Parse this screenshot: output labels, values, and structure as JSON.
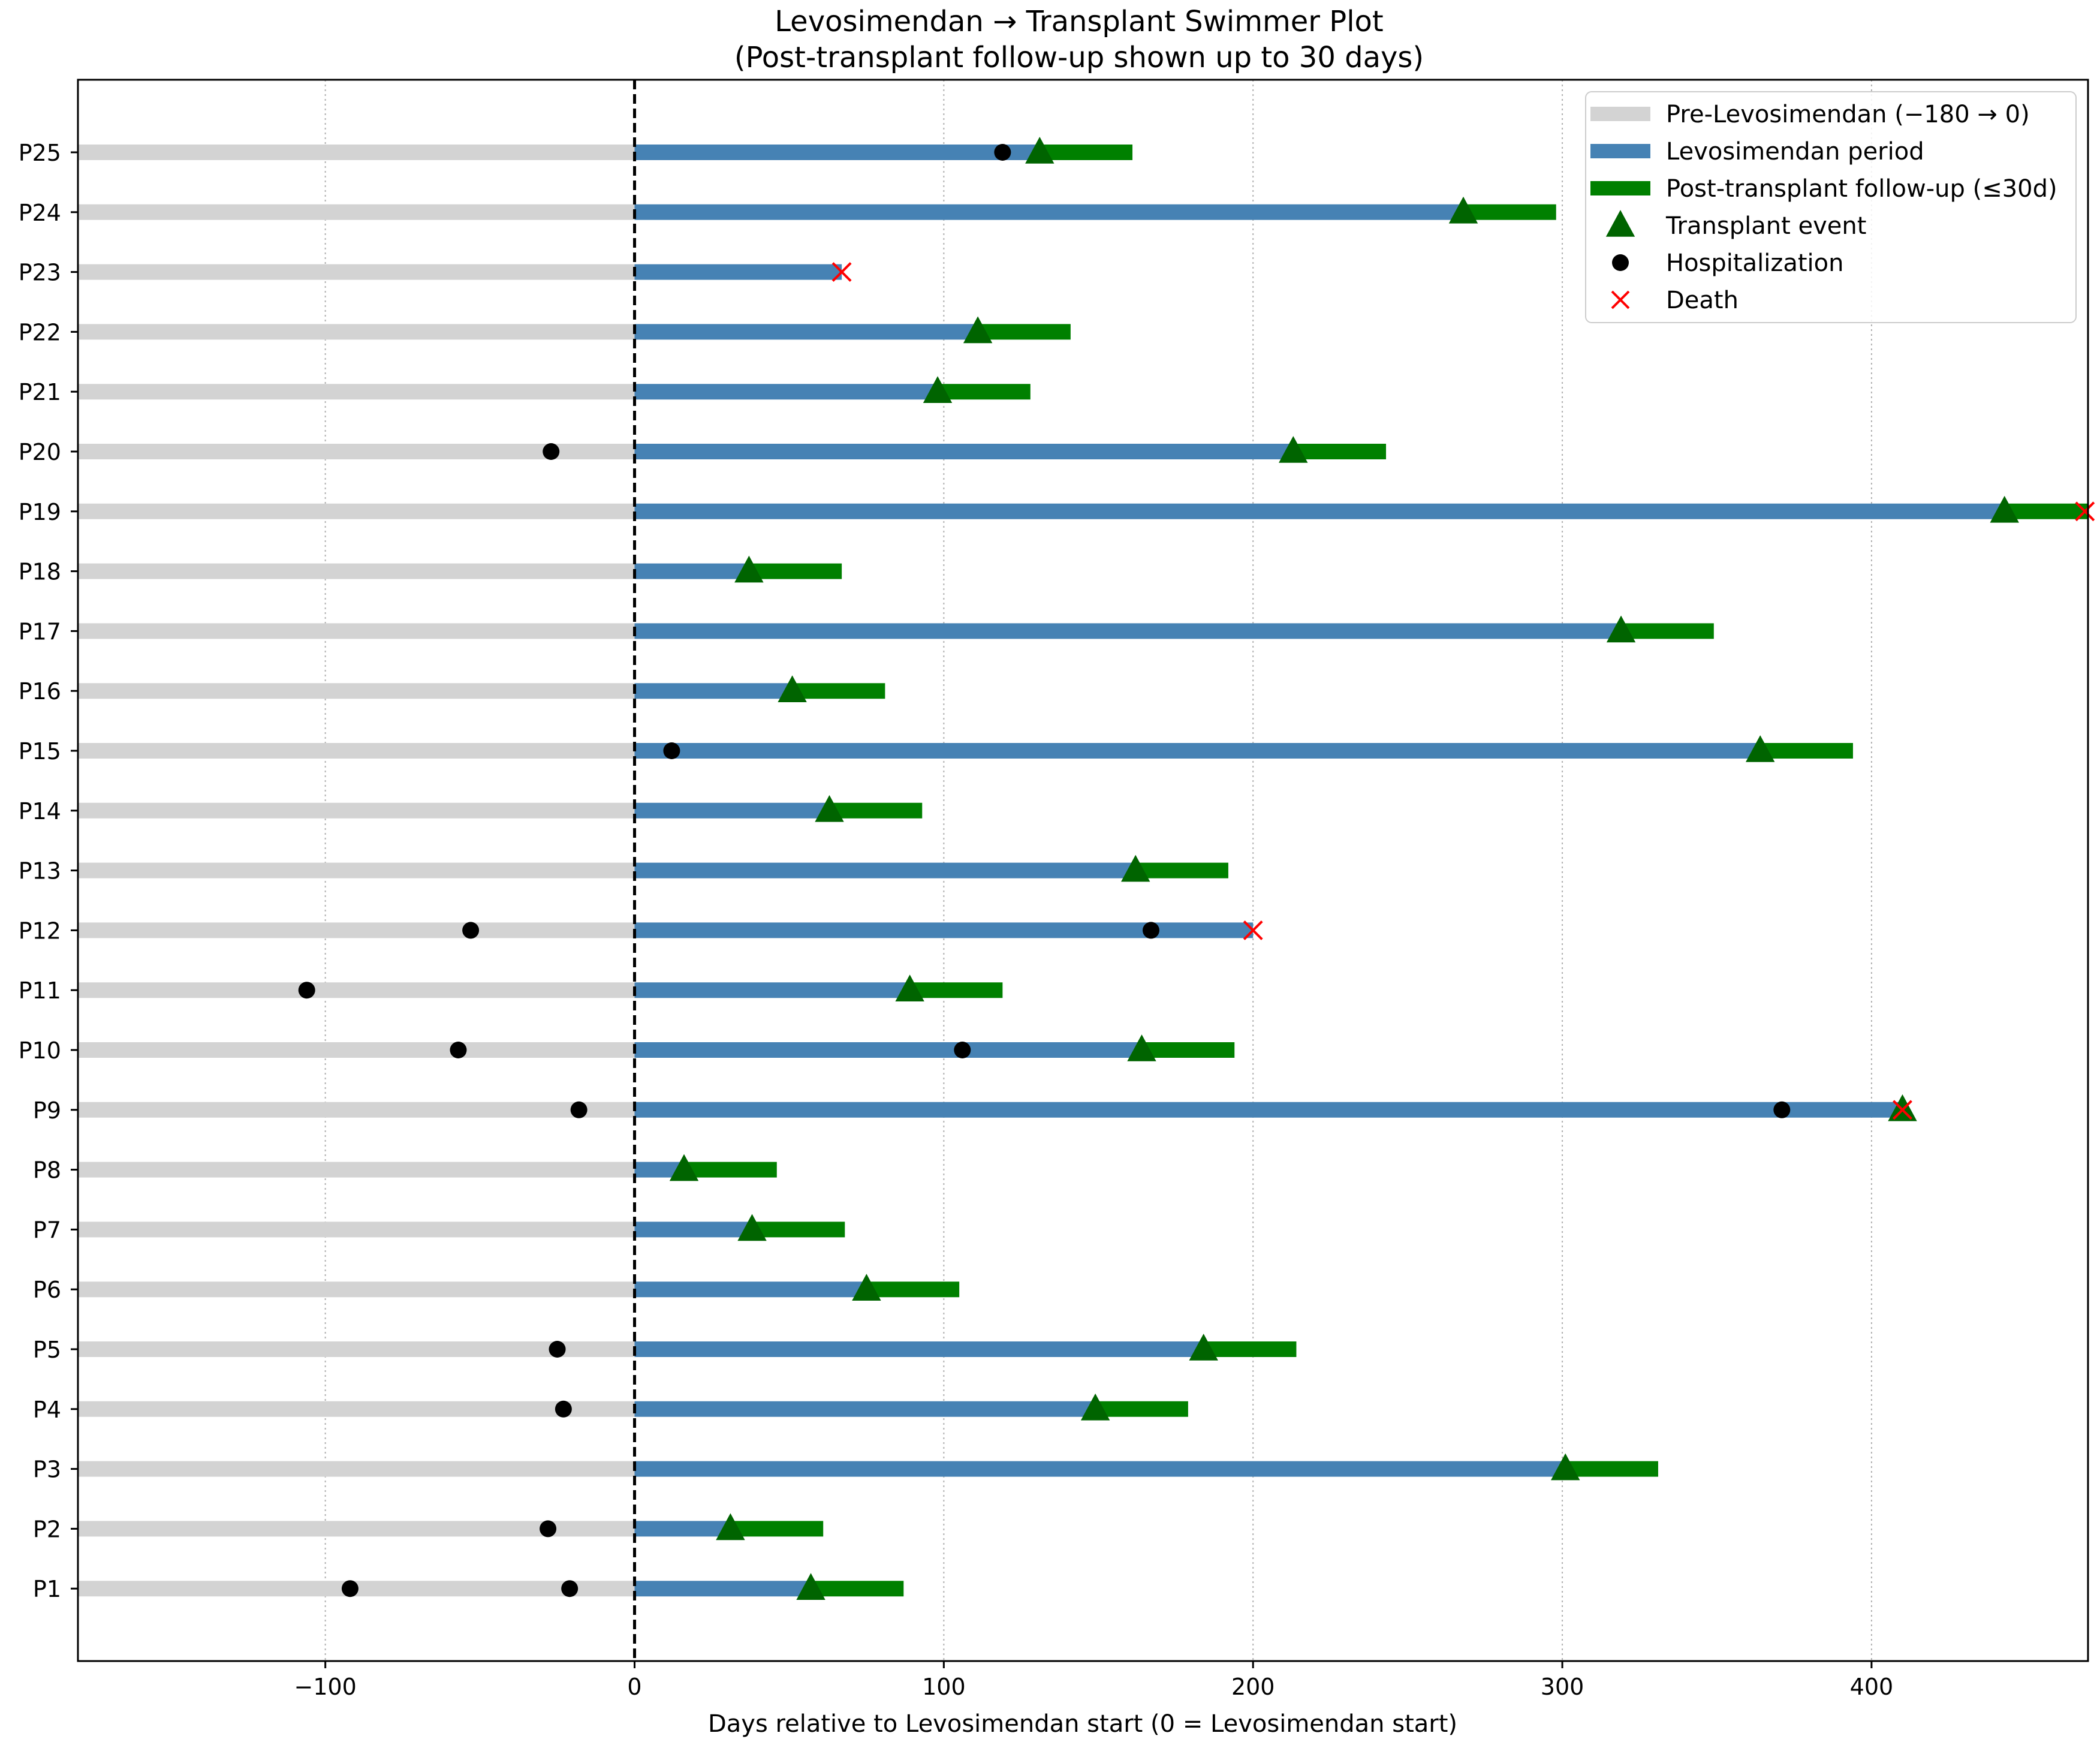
{
  "chart_data": {
    "type": "swimmer",
    "title": "Levosimendan → Transplant Swimmer Plot",
    "subtitle": "(Post-transplant follow-up shown up to 30 days)",
    "xlabel": "Days relative to Levosimendan start (0 = Levosimendan start)",
    "ylabel": "",
    "xlim": [
      -180,
      470
    ],
    "xticks": [
      -100,
      0,
      100,
      200,
      300,
      400
    ],
    "xtick_labels": [
      "−100",
      "0",
      "100",
      "200",
      "300",
      "400"
    ],
    "grid": "vertical dotted",
    "reference_line": {
      "x": 0,
      "style": "dashed"
    },
    "legend_position": "top-right",
    "colors": {
      "pre": "#d3d3d3",
      "levo": "#4682b4",
      "post": "#008000",
      "transplant": "#006400",
      "hospitalization": "#000000",
      "death": "#ff0000"
    },
    "legend": [
      {
        "key": "pre",
        "kind": "line",
        "label": "Pre-Levosimendan (−180 → 0)"
      },
      {
        "key": "levo",
        "kind": "line",
        "label": "Levosimendan period"
      },
      {
        "key": "post",
        "kind": "line",
        "label": "Post-transplant follow-up (≤30d)"
      },
      {
        "key": "transplant",
        "kind": "triangle",
        "label": "Transplant event"
      },
      {
        "key": "hospitalization",
        "kind": "circle",
        "label": "Hospitalization"
      },
      {
        "key": "death",
        "kind": "cross",
        "label": "Death"
      }
    ],
    "patients": [
      {
        "id": "P1",
        "levo_end": 57,
        "transplant": 57,
        "post_end": 87,
        "death": null,
        "hospitalizations": [
          -92,
          -21
        ]
      },
      {
        "id": "P2",
        "levo_end": 31,
        "transplant": 31,
        "post_end": 61,
        "death": null,
        "hospitalizations": [
          -28
        ]
      },
      {
        "id": "P3",
        "levo_end": 301,
        "transplant": 301,
        "post_end": 331,
        "death": null,
        "hospitalizations": []
      },
      {
        "id": "P4",
        "levo_end": 149,
        "transplant": 149,
        "post_end": 179,
        "death": null,
        "hospitalizations": [
          -23
        ]
      },
      {
        "id": "P5",
        "levo_end": 184,
        "transplant": 184,
        "post_end": 214,
        "death": null,
        "hospitalizations": [
          -25
        ]
      },
      {
        "id": "P6",
        "levo_end": 75,
        "transplant": 75,
        "post_end": 105,
        "death": null,
        "hospitalizations": []
      },
      {
        "id": "P7",
        "levo_end": 38,
        "transplant": 38,
        "post_end": 68,
        "death": null,
        "hospitalizations": []
      },
      {
        "id": "P8",
        "levo_end": 16,
        "transplant": 16,
        "post_end": 46,
        "death": null,
        "hospitalizations": []
      },
      {
        "id": "P9",
        "levo_end": 410,
        "transplant": 410,
        "post_end": 410,
        "death": 410,
        "hospitalizations": [
          -18,
          371
        ]
      },
      {
        "id": "P10",
        "levo_end": 164,
        "transplant": 164,
        "post_end": 194,
        "death": null,
        "hospitalizations": [
          -57,
          106
        ]
      },
      {
        "id": "P11",
        "levo_end": 89,
        "transplant": 89,
        "post_end": 119,
        "death": null,
        "hospitalizations": [
          -106
        ]
      },
      {
        "id": "P12",
        "levo_end": 200,
        "transplant": null,
        "post_end": null,
        "death": 200,
        "hospitalizations": [
          -53,
          167
        ]
      },
      {
        "id": "P13",
        "levo_end": 162,
        "transplant": 162,
        "post_end": 192,
        "death": null,
        "hospitalizations": []
      },
      {
        "id": "P14",
        "levo_end": 63,
        "transplant": 63,
        "post_end": 93,
        "death": null,
        "hospitalizations": []
      },
      {
        "id": "P15",
        "levo_end": 364,
        "transplant": 364,
        "post_end": 394,
        "death": null,
        "hospitalizations": [
          12
        ]
      },
      {
        "id": "P16",
        "levo_end": 51,
        "transplant": 51,
        "post_end": 81,
        "death": null,
        "hospitalizations": []
      },
      {
        "id": "P17",
        "levo_end": 319,
        "transplant": 319,
        "post_end": 349,
        "death": null,
        "hospitalizations": []
      },
      {
        "id": "P18",
        "levo_end": 37,
        "transplant": 37,
        "post_end": 67,
        "death": null,
        "hospitalizations": []
      },
      {
        "id": "P19",
        "levo_end": 443,
        "transplant": 443,
        "post_end": 470,
        "death": 469,
        "hospitalizations": []
      },
      {
        "id": "P20",
        "levo_end": 213,
        "transplant": 213,
        "post_end": 243,
        "death": null,
        "hospitalizations": [
          -27
        ]
      },
      {
        "id": "P21",
        "levo_end": 98,
        "transplant": 98,
        "post_end": 128,
        "death": null,
        "hospitalizations": []
      },
      {
        "id": "P22",
        "levo_end": 111,
        "transplant": 111,
        "post_end": 141,
        "death": null,
        "hospitalizations": []
      },
      {
        "id": "P23",
        "levo_end": 67,
        "transplant": null,
        "post_end": null,
        "death": 67,
        "hospitalizations": []
      },
      {
        "id": "P24",
        "levo_end": 268,
        "transplant": 268,
        "post_end": 298,
        "death": null,
        "hospitalizations": []
      },
      {
        "id": "P25",
        "levo_end": 131,
        "transplant": 131,
        "post_end": 161,
        "death": null,
        "hospitalizations": [
          119
        ]
      }
    ],
    "pre_start": -180
  }
}
